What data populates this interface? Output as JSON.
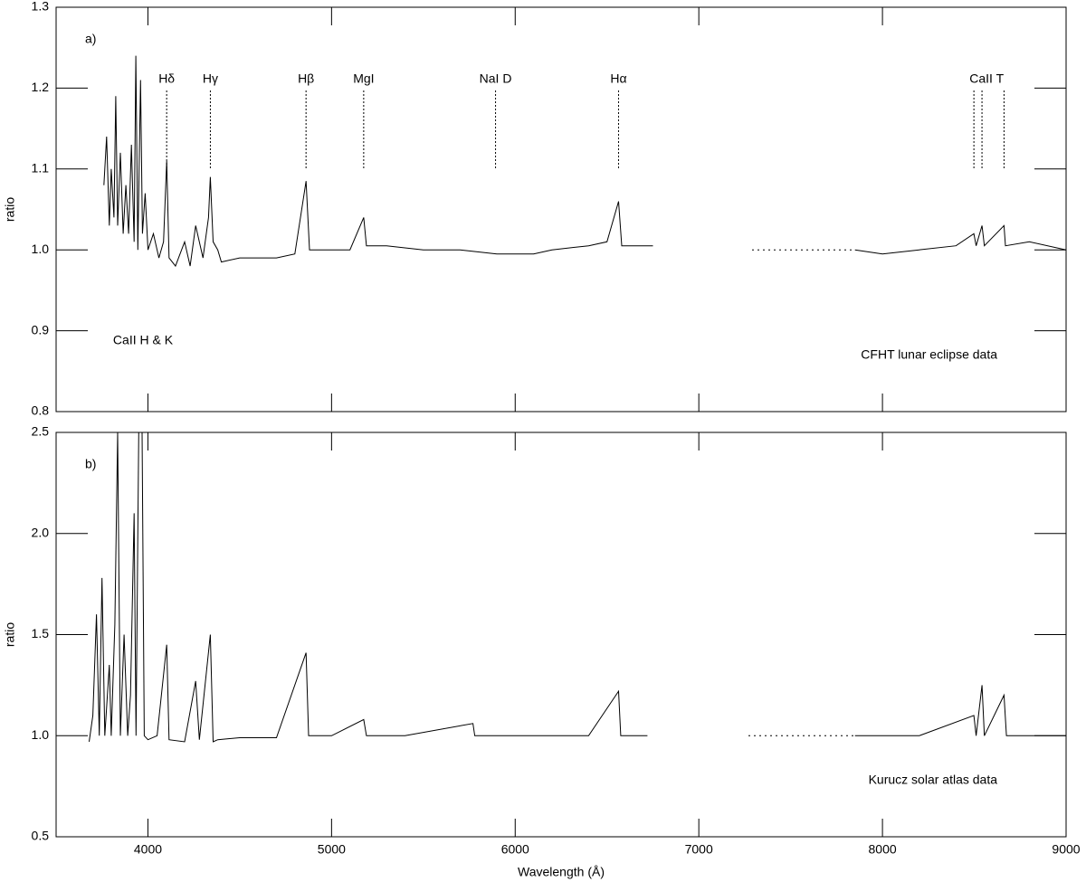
{
  "chart_data": [
    {
      "type": "line",
      "panel_label": "a)",
      "y_label": "ratio",
      "annotation": "CFHT lunar eclipse data",
      "note": "CaII H & K",
      "xlim": [
        3500,
        9000
      ],
      "xticks": [
        4000,
        5000,
        6000,
        7000,
        8000,
        9000
      ],
      "ylim": [
        0.8,
        1.3
      ],
      "yticks": [
        0.8,
        0.9,
        {
          "value": 1,
          "label": "1.0"
        },
        1.1,
        1.2,
        1.3
      ],
      "line_markers": [
        {
          "text": "Hδ",
          "lines": [
            4102
          ]
        },
        {
          "text": "Hγ",
          "lines": [
            4340
          ]
        },
        {
          "text": "Hβ",
          "lines": [
            4861
          ]
        },
        {
          "text": "MgI",
          "lines": [
            5175
          ]
        },
        {
          "text": "NaI D",
          "lines": [
            5893
          ]
        },
        {
          "text": "Hα",
          "lines": [
            6563
          ]
        },
        {
          "text": "CaII T",
          "lines": [
            8498,
            8542,
            8662
          ]
        }
      ],
      "series": [
        {
          "color": "#000000",
          "dash": "solid",
          "x": [
            3760,
            3775,
            3790,
            3800,
            3815,
            3825,
            3835,
            3850,
            3865,
            3880,
            3895,
            3910,
            3925,
            3934,
            3945,
            3960,
            3970,
            3985,
            4000,
            4030,
            4060,
            4085,
            4102,
            4115,
            4150,
            4200,
            4230,
            4260,
            4300,
            4330,
            4340,
            4355,
            4380,
            4400,
            4500,
            4600,
            4700,
            4800,
            4861,
            4880,
            5000,
            5100,
            5175,
            5190,
            5300,
            5500,
            5700,
            5900,
            6100,
            6200,
            6400,
            6500,
            6563,
            6580,
            6750,
            7000,
            7850,
            8000,
            8200,
            8400,
            8498,
            8510,
            8542,
            8555,
            8662,
            8670,
            8800,
            9000
          ],
          "values": [
            1.08,
            1.14,
            1.03,
            1.1,
            1.04,
            1.19,
            1.03,
            1.12,
            1.02,
            1.08,
            1.02,
            1.13,
            1.01,
            1.24,
            1,
            1.21,
            1.02,
            1.07,
            1,
            1.02,
            0.99,
            1.01,
            1.11,
            0.99,
            0.98,
            1.01,
            0.98,
            1.03,
            0.99,
            1.04,
            1.09,
            1.01,
            1,
            0.985,
            0.99,
            0.99,
            0.99,
            0.995,
            1.085,
            1,
            1,
            1,
            1.04,
            1.005,
            1.005,
            1,
            1,
            0.995,
            0.995,
            1,
            1.005,
            1.01,
            1.06,
            1.005,
            1.005,
            null,
            1,
            0.995,
            1,
            1.005,
            1.02,
            1.005,
            1.03,
            1.005,
            1.03,
            1.005,
            1.01,
            1
          ]
        },
        {
          "color": "#000000",
          "dash": "dotted",
          "x": [
            7290,
            7850
          ],
          "values": [
            1,
            1
          ]
        }
      ]
    },
    {
      "type": "line",
      "panel_label": "b)",
      "y_label": "ratio",
      "x_label": "Wavelength (Å)",
      "annotation": "Kurucz solar atlas data",
      "xlim": [
        3500,
        9000
      ],
      "xticks": [
        4000,
        5000,
        6000,
        7000,
        8000,
        9000
      ],
      "ylim": [
        0.5,
        2.5
      ],
      "yticks": [
        0.5,
        {
          "value": 1,
          "label": "1.0"
        },
        1.5,
        {
          "value": 2,
          "label": "2.0"
        },
        2.5
      ],
      "series": [
        {
          "color": "#000000",
          "dash": "solid",
          "x": [
            3680,
            3700,
            3720,
            3735,
            3750,
            3765,
            3790,
            3800,
            3820,
            3835,
            3850,
            3870,
            3890,
            3905,
            3925,
            3935,
            3950,
            3968,
            3980,
            4000,
            4050,
            4102,
            4115,
            4200,
            4260,
            4280,
            4340,
            4355,
            4380,
            4500,
            4700,
            4861,
            4875,
            5000,
            5175,
            5190,
            5400,
            5770,
            5780,
            6000,
            6400,
            6563,
            6575,
            6720,
            7000,
            7850,
            8200,
            8498,
            8510,
            8542,
            8555,
            8662,
            8675,
            9000
          ],
          "values": [
            0.97,
            1.1,
            1.6,
            1,
            1.78,
            1,
            1.35,
            1,
            1.55,
            2.5,
            1,
            1.5,
            1,
            1.2,
            2.1,
            1,
            2.5,
            2.5,
            1,
            0.98,
            1,
            1.45,
            0.98,
            0.97,
            1.27,
            0.98,
            1.5,
            0.97,
            0.98,
            0.99,
            0.99,
            1.41,
            1,
            1,
            1.08,
            1,
            1,
            1.06,
            1,
            1,
            1,
            1.22,
            1,
            1,
            null,
            1,
            1,
            1.1,
            1,
            1.25,
            1,
            1.2,
            1,
            1
          ]
        },
        {
          "color": "#000000",
          "dash": "dotted",
          "x": [
            7270,
            7850
          ],
          "values": [
            1,
            1
          ]
        }
      ]
    }
  ]
}
